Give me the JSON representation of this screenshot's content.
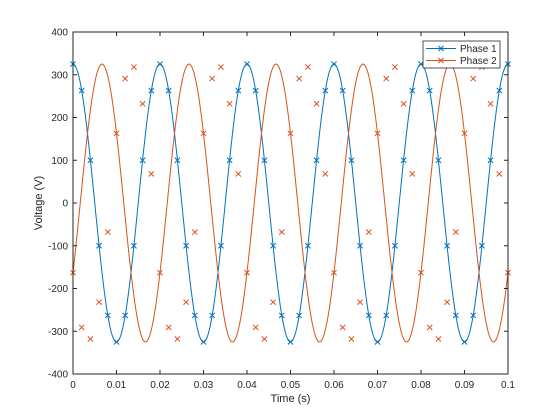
{
  "chart_data": {
    "type": "line",
    "title": "",
    "xlabel": "Time (s)",
    "ylabel": "Voltage (V)",
    "xlim": [
      0,
      0.1
    ],
    "ylim": [
      -400,
      400
    ],
    "xticks": [
      "0",
      "0.01",
      "0.02",
      "0.03",
      "0.04",
      "0.05",
      "0.06",
      "0.07",
      "0.08",
      "0.09",
      "0.1"
    ],
    "yticks": [
      "-400",
      "-300",
      "-200",
      "-100",
      "0",
      "100",
      "200",
      "300",
      "400"
    ],
    "grid": false,
    "legend_position": "top-right",
    "marker": "x",
    "frequency_hz": 50,
    "amplitude_v": 325,
    "x": [
      0,
      0.002,
      0.004,
      0.006,
      0.008,
      0.01,
      0.012,
      0.014,
      0.016,
      0.018,
      0.02,
      0.022,
      0.024,
      0.026,
      0.028,
      0.03,
      0.032,
      0.034,
      0.036,
      0.038,
      0.04,
      0.042,
      0.044,
      0.046,
      0.048,
      0.05,
      0.052,
      0.054,
      0.056,
      0.058,
      0.06,
      0.062,
      0.064,
      0.066,
      0.068,
      0.07,
      0.072,
      0.074,
      0.076,
      0.078,
      0.08,
      0.082,
      0.084,
      0.086,
      0.088,
      0.09,
      0.092,
      0.094,
      0.096,
      0.098,
      0.1
    ],
    "series": [
      {
        "name": "Phase 1",
        "color": "#0072BD",
        "values": [
          325,
          263,
          100,
          -100,
          -263,
          -325,
          -263,
          -100,
          100,
          263,
          325,
          263,
          100,
          -100,
          -263,
          -325,
          -263,
          -100,
          100,
          263,
          325,
          263,
          100,
          -100,
          -263,
          -325,
          -263,
          -100,
          100,
          263,
          325,
          263,
          100,
          -100,
          -263,
          -325,
          -263,
          -100,
          100,
          263,
          325,
          263,
          100,
          -100,
          -263,
          -325,
          -263,
          -100,
          100,
          263,
          325
        ]
      },
      {
        "name": "Phase 2",
        "color": "#D95319",
        "values": [
          -163,
          -291,
          -318,
          -232,
          -68,
          163,
          291,
          318,
          232,
          68,
          -163,
          -291,
          -318,
          -232,
          -68,
          163,
          291,
          318,
          232,
          68,
          -163,
          -291,
          -318,
          -232,
          -68,
          163,
          291,
          318,
          232,
          68,
          -163,
          -291,
          -318,
          -232,
          -68,
          163,
          291,
          318,
          232,
          68,
          -163,
          -291,
          -318,
          -232,
          -68,
          163,
          291,
          318,
          232,
          68,
          -163
        ]
      }
    ]
  }
}
